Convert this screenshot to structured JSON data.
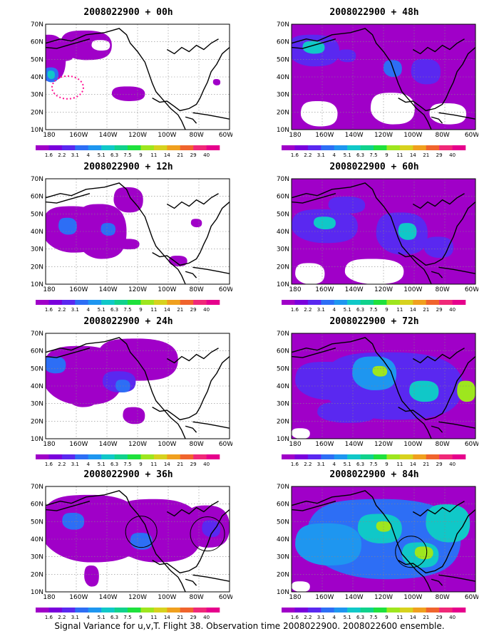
{
  "panels": [
    {
      "title": "2008022900 + 00h",
      "field": "00h"
    },
    {
      "title": "2008022900 + 12h",
      "field": "12h"
    },
    {
      "title": "2008022900 + 24h",
      "field": "24h"
    },
    {
      "title": "2008022900 + 36h",
      "field": "36h"
    },
    {
      "title": "2008022900 + 48h",
      "field": "48h"
    },
    {
      "title": "2008022900 + 60h",
      "field": "60h"
    },
    {
      "title": "2008022900 + 72h",
      "field": "72h"
    },
    {
      "title": "2008022900 + 84h",
      "field": "84h"
    }
  ],
  "lat_labels": [
    "70N",
    "60N",
    "50N",
    "40N",
    "30N",
    "20N",
    "10N"
  ],
  "lon_labels": [
    "180",
    "160W",
    "140W",
    "120W",
    "100W",
    "80W",
    "60W"
  ],
  "colorbar": {
    "labels": [
      "1.6",
      "2.2",
      "3.1",
      "4",
      "5.1",
      "6.3",
      "7.5",
      "9",
      "11",
      "14",
      "21",
      "29",
      "40"
    ],
    "colors": [
      "#a000c8",
      "#7a00dc",
      "#5a28f0",
      "#2d6ef5",
      "#1e96f0",
      "#10c8c8",
      "#10d28c",
      "#1ee13c",
      "#9ee61e",
      "#d7d21e",
      "#f0a01e",
      "#f0642d",
      "#f02878",
      "#e6008c"
    ]
  },
  "caption": "Signal Variance for u,v,T. Flight 38. Observation time 2008022900. 2008022600 ensemble."
}
